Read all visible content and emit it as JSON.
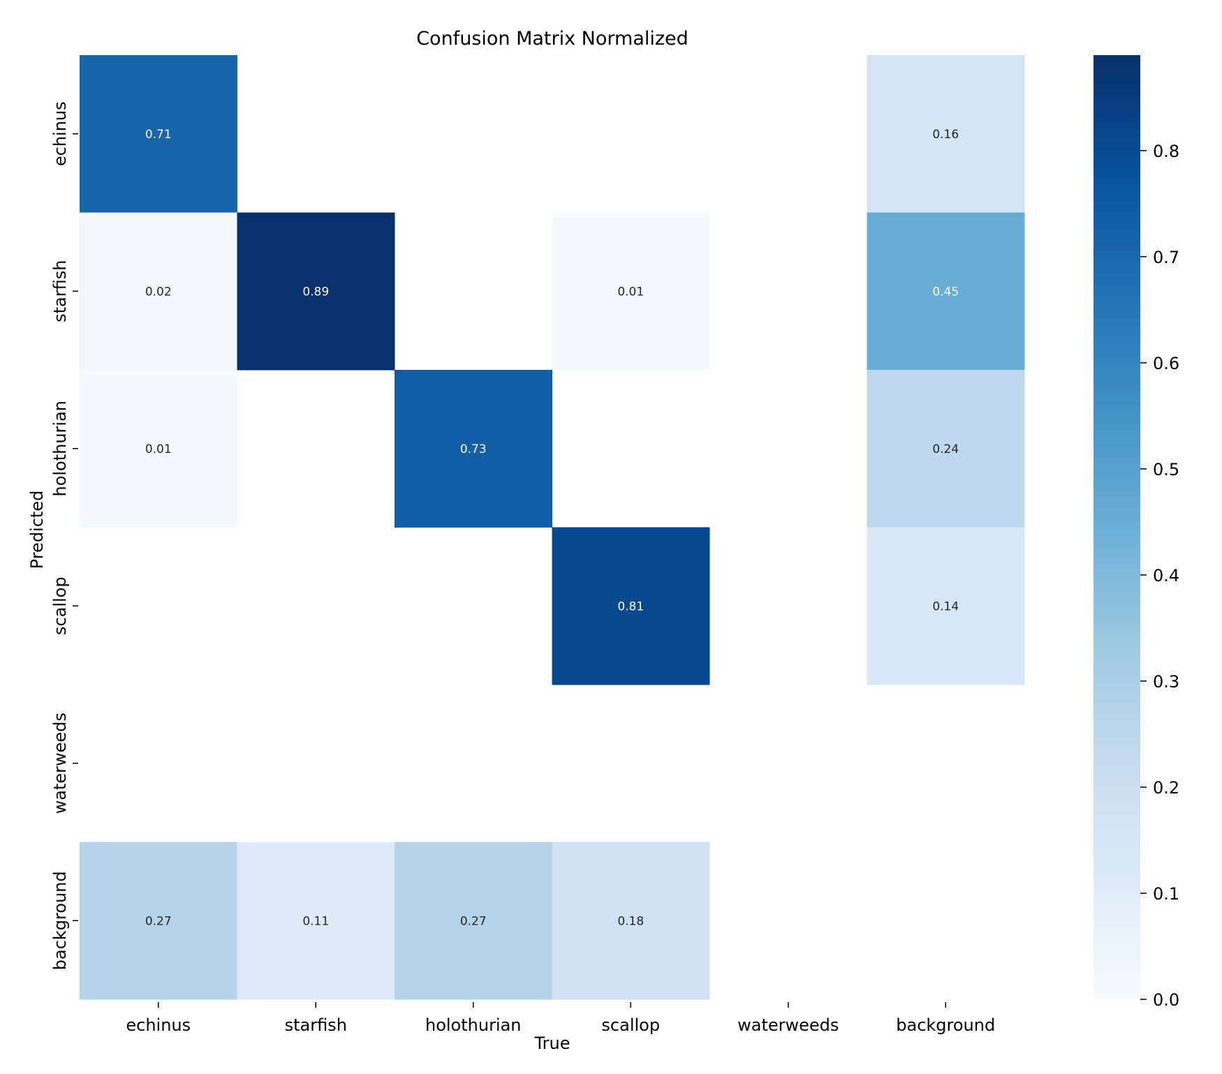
{
  "chart_data": {
    "type": "heatmap",
    "title": "Confusion Matrix Normalized",
    "xlabel": "True",
    "ylabel": "Predicted",
    "x_categories": [
      "echinus",
      "starfish",
      "holothurian",
      "scallop",
      "waterweeds",
      "background"
    ],
    "y_categories": [
      "echinus",
      "starfish",
      "holothurian",
      "scallop",
      "waterweeds",
      "background"
    ],
    "matrix": [
      [
        0.71,
        null,
        null,
        null,
        null,
        0.16
      ],
      [
        0.02,
        0.89,
        null,
        0.01,
        null,
        0.45
      ],
      [
        0.01,
        null,
        0.73,
        null,
        null,
        0.24
      ],
      [
        null,
        null,
        null,
        0.81,
        null,
        0.14
      ],
      [
        null,
        null,
        null,
        null,
        null,
        null
      ],
      [
        0.27,
        0.11,
        0.27,
        0.18,
        null,
        null
      ]
    ],
    "colormap": "Blues",
    "colorbar": {
      "min": 0.0,
      "max": 0.89,
      "ticks": [
        0.0,
        0.1,
        0.2,
        0.3,
        0.4,
        0.5,
        0.6,
        0.7,
        0.8
      ],
      "tick_labels": [
        "0.0",
        "0.1",
        "0.2",
        "0.3",
        "0.4",
        "0.5",
        "0.6",
        "0.7",
        "0.8"
      ]
    },
    "legend": "colorbar-right"
  }
}
